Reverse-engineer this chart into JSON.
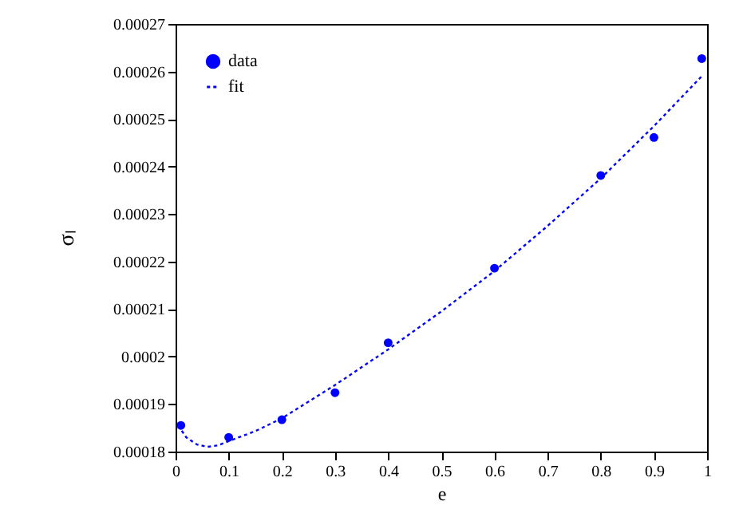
{
  "chart_data": {
    "type": "scatter",
    "xlabel": "e",
    "ylabel": "σₗ",
    "xlim": [
      0,
      1
    ],
    "ylim": [
      0.00018,
      0.00027
    ],
    "xticks": [
      0,
      0.1,
      0.2,
      0.3,
      0.4,
      0.5,
      0.6,
      0.7,
      0.8,
      0.9,
      1
    ],
    "yticks": [
      0.00018,
      0.00019,
      0.0002,
      0.00021,
      0.00022,
      0.00023,
      0.00024,
      0.00025,
      0.00026,
      0.00027
    ],
    "legend": "top left",
    "series": [
      {
        "name": "data",
        "type": "scatter",
        "marker": "circle",
        "color": "#0000ff",
        "x": [
          0.01,
          0.1,
          0.2,
          0.3,
          0.4,
          0.6,
          0.8,
          0.9,
          0.99
        ],
        "values": [
          0.0001855,
          0.000183,
          0.0001867,
          0.0001924,
          0.0002029,
          0.0002186,
          0.0002381,
          0.0002461,
          0.0002627
        ]
      },
      {
        "name": "fit",
        "type": "line",
        "line_style": "dotted",
        "color": "#0000ff",
        "x": [
          0.005,
          0.02,
          0.04,
          0.06,
          0.08,
          0.1,
          0.15,
          0.2,
          0.3,
          0.4,
          0.5,
          0.6,
          0.7,
          0.8,
          0.9,
          0.99
        ],
        "values": [
          0.0001855,
          0.000183,
          0.0001815,
          0.000181,
          0.0001813,
          0.0001822,
          0.0001843,
          0.000187,
          0.000194,
          0.0002015,
          0.0002095,
          0.000218,
          0.0002275,
          0.0002375,
          0.0002485,
          0.000259
        ]
      }
    ]
  }
}
